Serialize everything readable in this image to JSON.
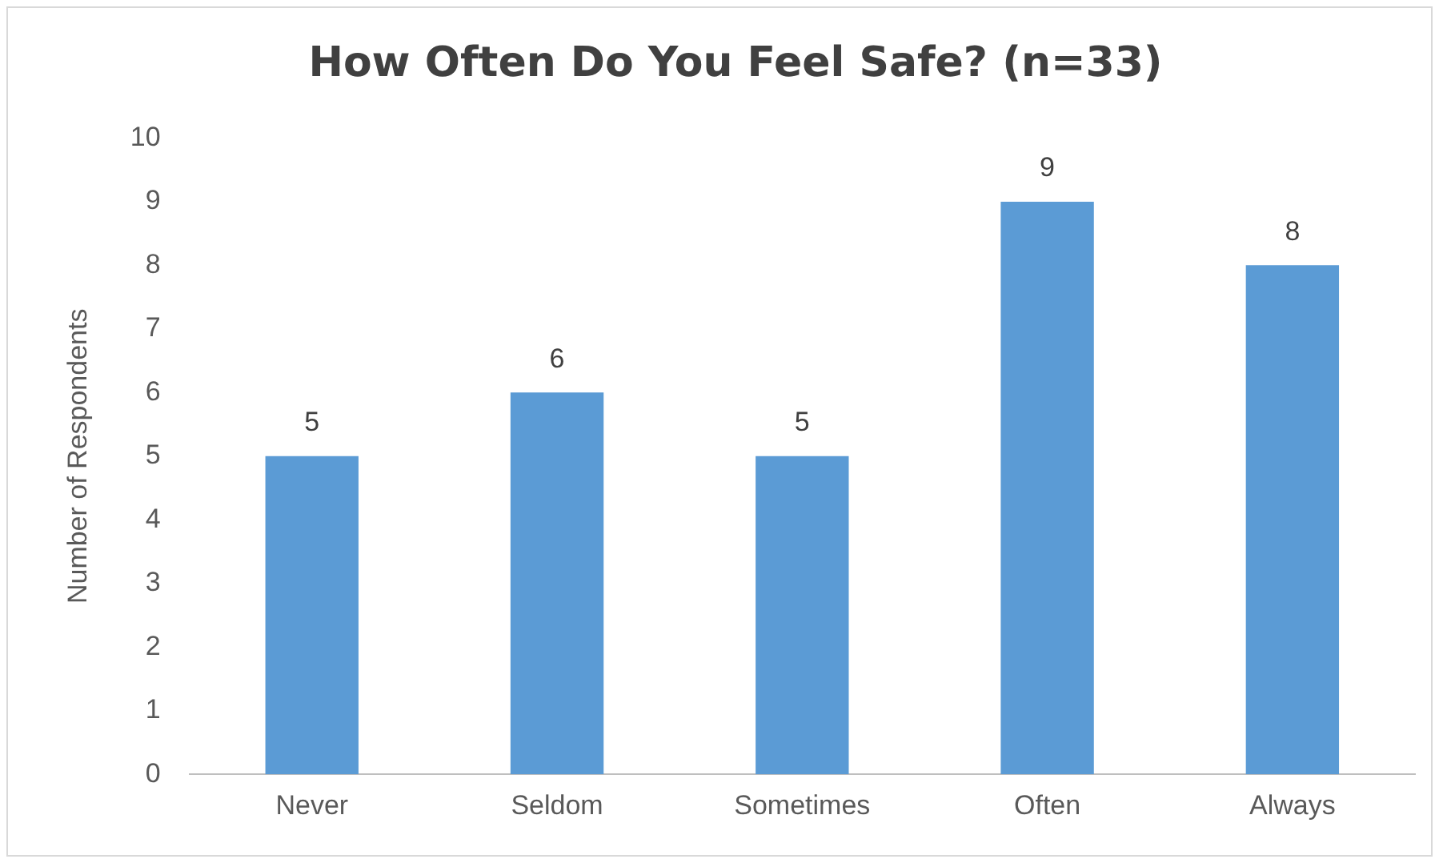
{
  "chart_data": {
    "type": "bar",
    "title": "How Often Do You Feel Safe? (n=33)",
    "ylabel": "Number of Respondents",
    "categories": [
      "Never",
      "Seldom",
      "Sometimes",
      "Often",
      "Always"
    ],
    "values": [
      5,
      6,
      5,
      9,
      8
    ],
    "color": "#5b9bd5",
    "ylim": [
      0,
      10
    ],
    "yticks": [
      0,
      1,
      2,
      3,
      4,
      5,
      6,
      7,
      8,
      9,
      10
    ],
    "grid": false,
    "legend": false,
    "data_labels": true
  }
}
